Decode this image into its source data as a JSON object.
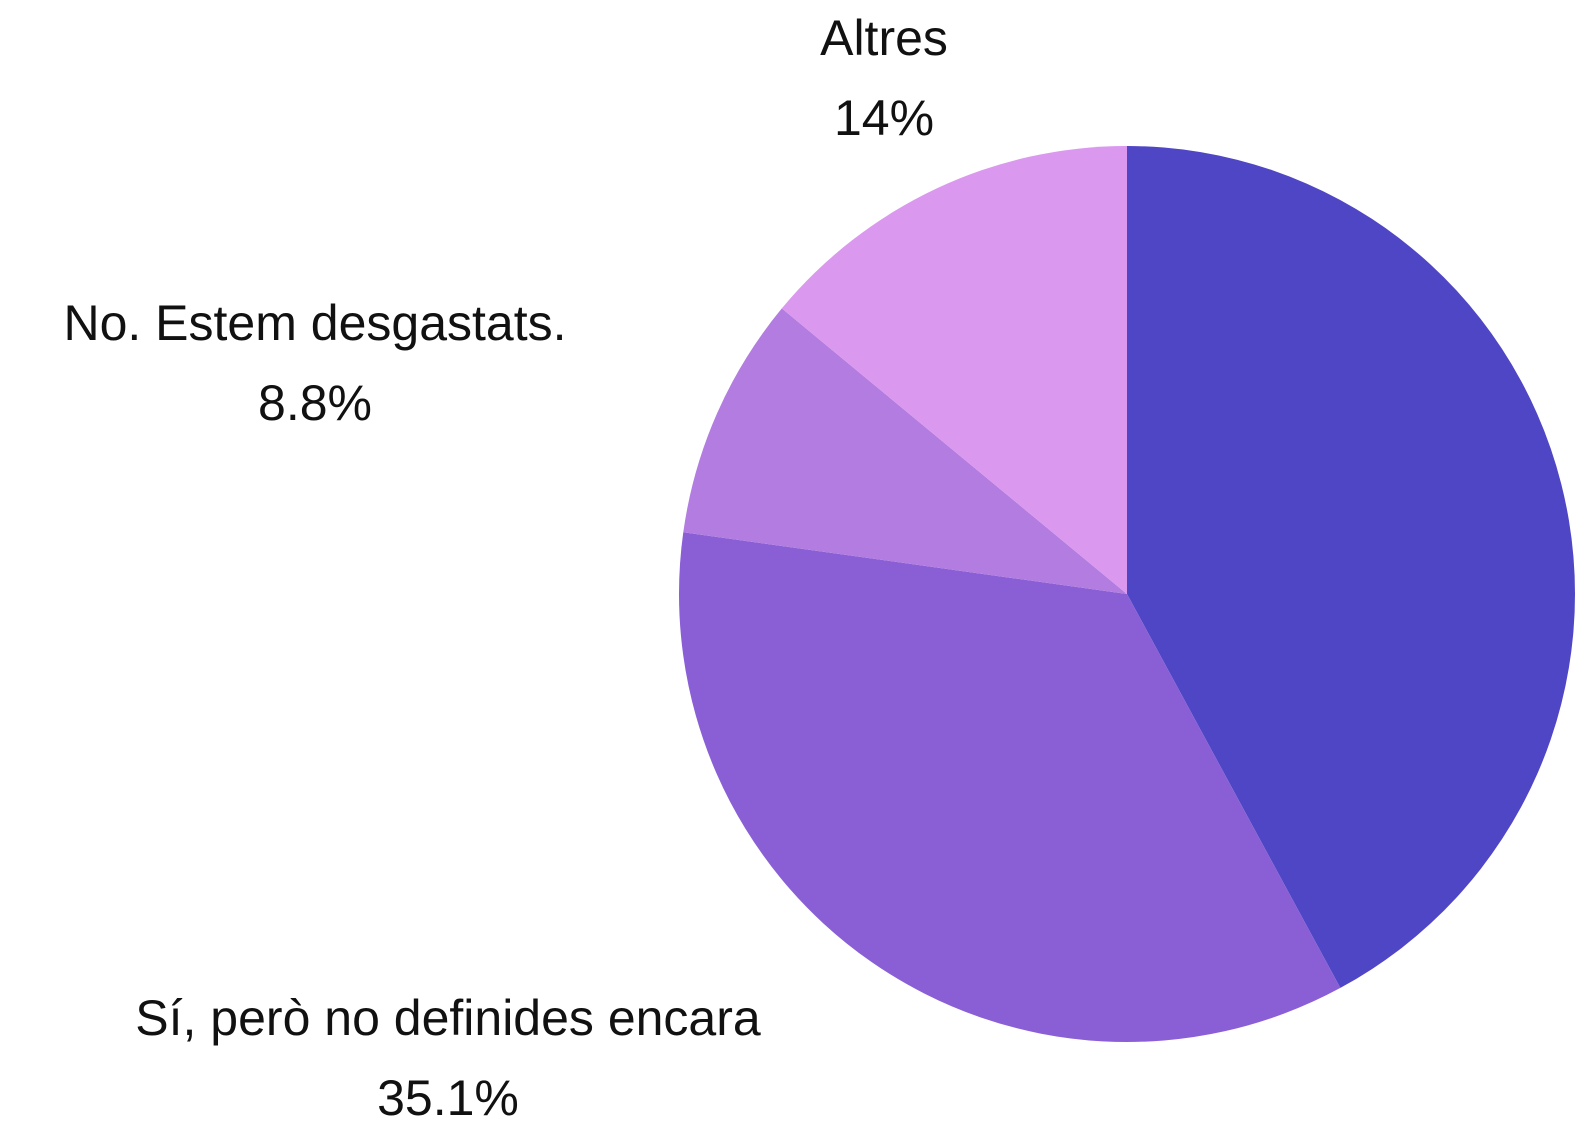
{
  "chart_data": {
    "type": "pie",
    "categories": [
      null,
      "Sí, però no definides encara",
      "No. Estem desgastats.",
      "Altres"
    ],
    "values": [
      42.1,
      35.1,
      8.8,
      14
    ],
    "value_labels": [
      null,
      "35.1%",
      "8.8%",
      "14%"
    ],
    "colors": [
      "#4f46c5",
      "#8a5fd6",
      "#b27ce0",
      "#db98ef"
    ]
  }
}
